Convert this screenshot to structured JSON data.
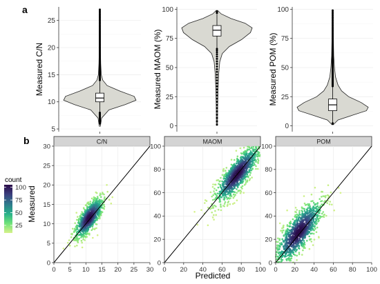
{
  "panel_labels": {
    "a": "a",
    "b": "b"
  },
  "colors": {
    "violin_fill": "#d9d9d2",
    "strip_fill": "#d4d4d4",
    "grid": "#ebebeb",
    "line": "#000000"
  },
  "chart_data": [
    {
      "type": "violin",
      "ylabel": "Measured C/N",
      "yticks": [
        5,
        10,
        15,
        20,
        25
      ],
      "ylim": [
        4.5,
        27.5
      ],
      "summary": {
        "q1": 10,
        "median": 10.7,
        "q3": 11.6,
        "whisker_low": 8,
        "whisker_high": 14,
        "max": 27,
        "min": 6
      },
      "density": [
        [
          5.5,
          0.01
        ],
        [
          7,
          0.05
        ],
        [
          8.5,
          0.25
        ],
        [
          9.5,
          0.7
        ],
        [
          10.3,
          1.0
        ],
        [
          11,
          0.95
        ],
        [
          12,
          0.55
        ],
        [
          13,
          0.2
        ],
        [
          14,
          0.08
        ],
        [
          15,
          0.04
        ],
        [
          17,
          0.025
        ],
        [
          20,
          0.015
        ],
        [
          24,
          0.008
        ],
        [
          27,
          0.005
        ]
      ]
    },
    {
      "type": "violin",
      "ylabel": "Measured MAOM (%)",
      "yticks": [
        0,
        25,
        50,
        75,
        100
      ],
      "ylim": [
        -5,
        102
      ],
      "summary": {
        "q1": 77,
        "median": 82,
        "q3": 86,
        "whisker_low": 66,
        "whisker_high": 97,
        "max": 98,
        "min": 1
      },
      "density": [
        [
          1,
          0.01
        ],
        [
          15,
          0.02
        ],
        [
          30,
          0.03
        ],
        [
          45,
          0.05
        ],
        [
          55,
          0.08
        ],
        [
          62,
          0.15
        ],
        [
          68,
          0.35
        ],
        [
          74,
          0.7
        ],
        [
          80,
          0.95
        ],
        [
          84,
          1.0
        ],
        [
          88,
          0.8
        ],
        [
          92,
          0.4
        ],
        [
          96,
          0.12
        ],
        [
          99,
          0.02
        ]
      ]
    },
    {
      "type": "violin",
      "ylabel": "Measured POM (%)",
      "yticks": [
        0,
        25,
        50,
        75,
        100
      ],
      "ylim": [
        -5,
        102
      ],
      "summary": {
        "q1": 13,
        "median": 18,
        "q3": 23,
        "whisker_low": 2,
        "whisker_high": 34,
        "max": 99,
        "min": 2
      },
      "density": [
        [
          1,
          0.02
        ],
        [
          5,
          0.15
        ],
        [
          9,
          0.55
        ],
        [
          13,
          0.95
        ],
        [
          16,
          1.0
        ],
        [
          20,
          0.8
        ],
        [
          25,
          0.45
        ],
        [
          30,
          0.25
        ],
        [
          35,
          0.15
        ],
        [
          42,
          0.08
        ],
        [
          50,
          0.05
        ],
        [
          60,
          0.03
        ],
        [
          75,
          0.02
        ],
        [
          90,
          0.01
        ],
        [
          99,
          0.005
        ]
      ]
    },
    {
      "type": "scatter",
      "facet": "C/N",
      "xlim": [
        0,
        30
      ],
      "ylim": [
        0,
        30
      ],
      "xticks": [
        0,
        5,
        10,
        15,
        20,
        25,
        30
      ],
      "yticks": [
        0,
        5,
        10,
        15,
        20,
        25,
        30
      ],
      "identity_line": true,
      "cloud": {
        "center": [
          11,
          11.5
        ],
        "sd_major": 3.2,
        "sd_minor": 1.2,
        "angle": 0.9,
        "n": 900
      }
    },
    {
      "type": "scatter",
      "facet": "MAOM",
      "xlim": [
        0,
        100
      ],
      "ylim": [
        0,
        100
      ],
      "xticks": [
        0,
        20,
        40,
        60,
        80,
        100
      ],
      "yticks": [
        0,
        20,
        40,
        60,
        80,
        100
      ],
      "identity_line": true,
      "cloud": {
        "center": [
          76,
          76
        ],
        "sd_major": 16,
        "sd_minor": 5,
        "angle": 0.82,
        "n": 1100
      }
    },
    {
      "type": "scatter",
      "facet": "POM",
      "xlim": [
        0,
        100
      ],
      "ylim": [
        0,
        100
      ],
      "xticks": [
        0,
        20,
        40,
        60,
        80,
        100
      ],
      "yticks": [
        0,
        20,
        40,
        60,
        80,
        100
      ],
      "identity_line": true,
      "cloud": {
        "center": [
          24,
          26
        ],
        "sd_major": 17,
        "sd_minor": 6,
        "angle": 0.85,
        "n": 1100
      }
    }
  ],
  "scatter_axes": {
    "xlabel": "Predicted",
    "ylabel": "Measured"
  },
  "legend": {
    "title": "count",
    "breaks": [
      100,
      75,
      50,
      25
    ],
    "colors": [
      "#2a0a47",
      "#3b3f7e",
      "#2f7a8c",
      "#27b08a",
      "#6fe27a",
      "#d7f28a"
    ]
  }
}
